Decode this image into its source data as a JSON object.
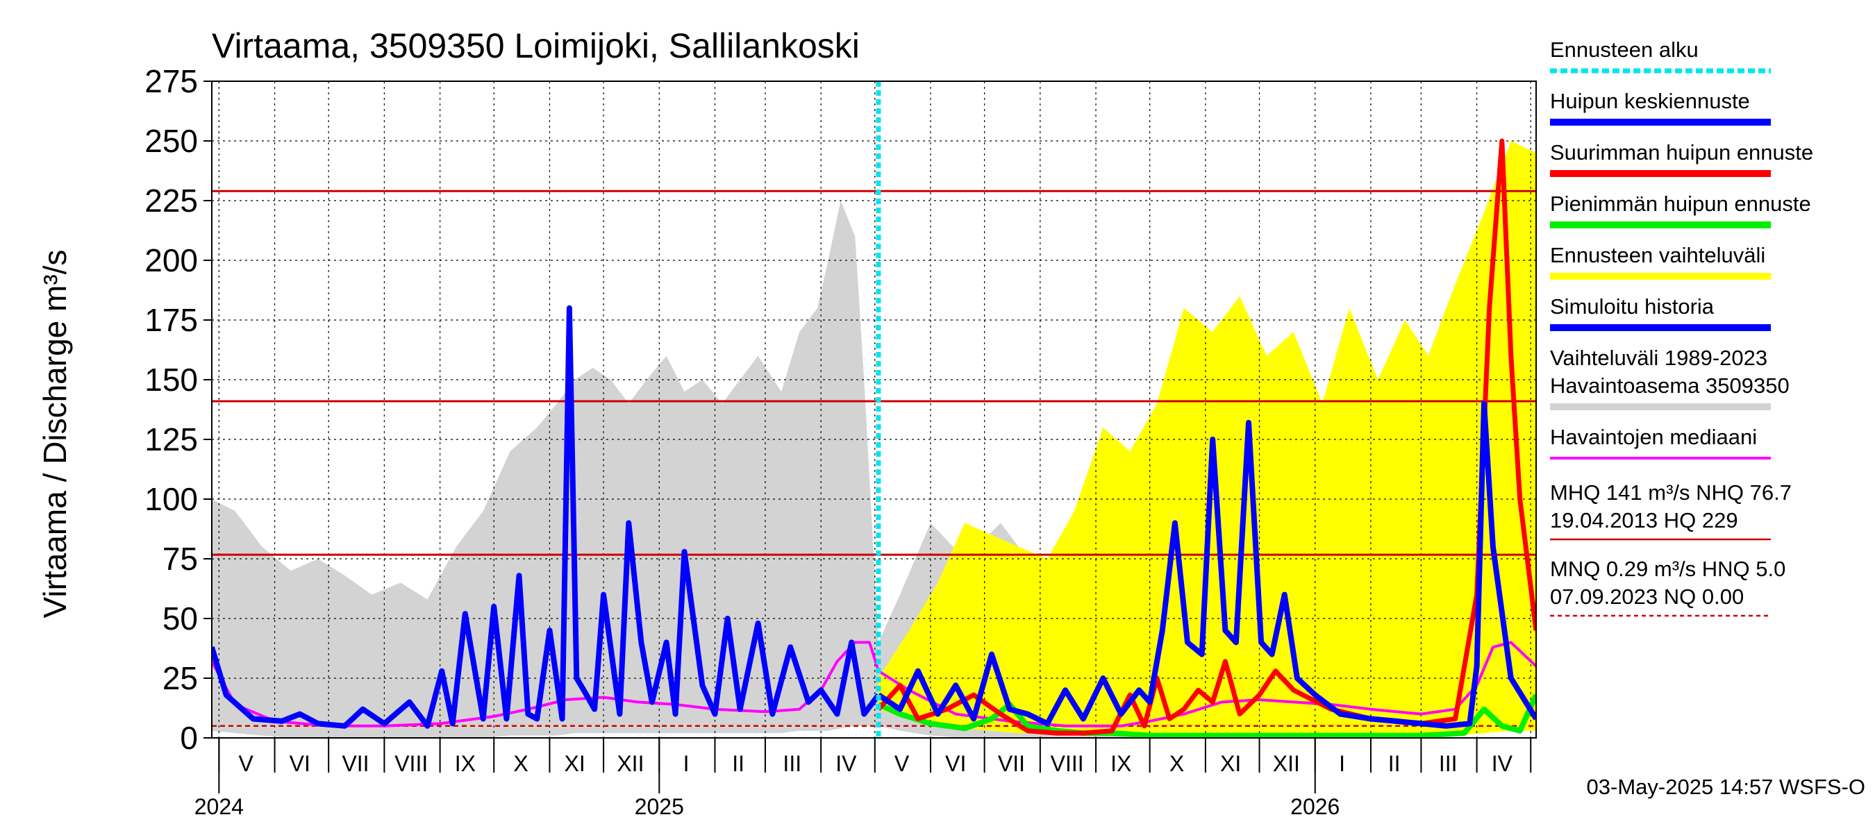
{
  "chart_data": {
    "type": "area",
    "title": "Virtaama, 3509350 Loimijoki, Sallilankoski",
    "ylabel": "Virtaama / Discharge    m³/s",
    "ylim": [
      0,
      275
    ],
    "xlim": [
      "2024-04-27",
      "2026-05-04"
    ],
    "grid": true,
    "legend_placement": "right",
    "yticks": [
      "0",
      "25",
      "50",
      "75",
      "100",
      "125",
      "150",
      "175",
      "200",
      "225",
      "250",
      "275"
    ],
    "month_labels": [
      {
        "label": "V",
        "date": "2024-05-16"
      },
      {
        "label": "VI",
        "date": "2024-06-15"
      },
      {
        "label": "VII",
        "date": "2024-07-16"
      },
      {
        "label": "VIII",
        "date": "2024-08-16"
      },
      {
        "label": "IX",
        "date": "2024-09-15"
      },
      {
        "label": "X",
        "date": "2024-10-16"
      },
      {
        "label": "XI",
        "date": "2024-11-15"
      },
      {
        "label": "XII",
        "date": "2024-12-16"
      },
      {
        "label": "I",
        "date": "2025-01-16"
      },
      {
        "label": "II",
        "date": "2025-02-14"
      },
      {
        "label": "III",
        "date": "2025-03-16"
      },
      {
        "label": "IV",
        "date": "2025-04-15"
      },
      {
        "label": "V",
        "date": "2025-05-16"
      },
      {
        "label": "VI",
        "date": "2025-06-15"
      },
      {
        "label": "VII",
        "date": "2025-07-16"
      },
      {
        "label": "VIII",
        "date": "2025-08-16"
      },
      {
        "label": "IX",
        "date": "2025-09-15"
      },
      {
        "label": "X",
        "date": "2025-10-16"
      },
      {
        "label": "XI",
        "date": "2025-11-15"
      },
      {
        "label": "XII",
        "date": "2025-12-16"
      },
      {
        "label": "I",
        "date": "2026-01-16"
      },
      {
        "label": "II",
        "date": "2026-02-14"
      },
      {
        "label": "III",
        "date": "2026-03-16"
      },
      {
        "label": "IV",
        "date": "2026-04-15"
      }
    ],
    "month_boundaries": [
      "2024-05-01",
      "2024-06-01",
      "2024-07-01",
      "2024-08-01",
      "2024-09-01",
      "2024-10-01",
      "2024-11-01",
      "2024-12-01",
      "2025-01-01",
      "2025-02-01",
      "2025-03-01",
      "2025-04-01",
      "2025-05-01",
      "2025-06-01",
      "2025-07-01",
      "2025-08-01",
      "2025-09-01",
      "2025-10-01",
      "2025-11-01",
      "2025-12-01",
      "2026-01-01",
      "2026-02-01",
      "2026-03-01",
      "2026-04-01",
      "2026-05-01"
    ],
    "year_labels": [
      {
        "label": "2024",
        "date": "2024-05-01"
      },
      {
        "label": "2025",
        "date": "2025-01-01"
      },
      {
        "label": "2026",
        "date": "2026-01-01"
      }
    ],
    "forecast_start": "2025-05-03",
    "reference_lines": [
      {
        "value": 229,
        "style": "solid"
      },
      {
        "value": 141,
        "style": "solid"
      },
      {
        "value": 76.7,
        "style": "solid"
      },
      {
        "value": 5.0,
        "style": "dashed"
      }
    ],
    "colors": {
      "forecast_start": "#00e5ee",
      "mean_forecast": "#0000ff",
      "max_forecast": "#ff0000",
      "min_forecast": "#00ee00",
      "forecast_range": "#ffff00",
      "simulated_history": "#0000ff",
      "historical_range": "#d3d3d3",
      "observed_median": "#ff00ff",
      "reference": "#cc0000"
    },
    "series": [
      {
        "name": "Vaihteluväli 1989-2023 Havaintoasema 3509350",
        "kind": "band",
        "x": [
          "2024-04-27",
          "2024-05-10",
          "2024-05-25",
          "2024-06-10",
          "2024-06-25",
          "2024-07-10",
          "2024-07-25",
          "2024-08-10",
          "2024-08-25",
          "2024-09-10",
          "2024-09-25",
          "2024-10-10",
          "2024-10-25",
          "2024-11-05",
          "2024-11-15",
          "2024-11-25",
          "2024-12-05",
          "2024-12-15",
          "2024-12-25",
          "2025-01-05",
          "2025-01-15",
          "2025-01-25",
          "2025-02-05",
          "2025-02-15",
          "2025-02-25",
          "2025-03-10",
          "2025-03-20",
          "2025-03-30",
          "2025-04-05",
          "2025-04-12",
          "2025-04-20",
          "2025-04-25",
          "2025-05-03",
          "2025-05-15",
          "2025-06-01",
          "2025-06-20",
          "2025-07-10",
          "2025-07-30",
          "2025-08-20",
          "2025-09-10",
          "2025-09-30",
          "2025-10-15",
          "2025-10-30",
          "2025-11-10",
          "2025-11-25",
          "2025-12-10",
          "2025-12-25",
          "2026-01-10",
          "2026-01-25",
          "2026-02-10",
          "2026-02-25",
          "2026-03-10",
          "2026-03-25",
          "2026-04-05",
          "2026-04-15",
          "2026-04-25",
          "2026-05-04"
        ],
        "low": [
          3,
          2,
          1,
          0,
          0,
          0,
          0,
          0,
          0,
          0,
          0,
          1,
          1,
          1,
          2,
          2,
          2,
          2,
          2,
          2,
          2,
          2,
          2,
          2,
          2,
          2,
          3,
          3,
          3,
          4,
          5,
          5,
          5,
          3,
          1,
          0,
          0,
          0,
          0,
          0,
          1,
          1,
          2,
          2,
          2,
          2,
          2,
          2,
          2,
          2,
          2,
          2,
          3,
          4,
          6,
          5,
          5
        ],
        "high": [
          100,
          95,
          80,
          70,
          75,
          68,
          60,
          65,
          58,
          80,
          95,
          120,
          130,
          140,
          150,
          155,
          150,
          140,
          150,
          160,
          145,
          150,
          140,
          150,
          160,
          145,
          170,
          180,
          200,
          225,
          210,
          150,
          40,
          60,
          90,
          75,
          90,
          70,
          75,
          80,
          90,
          100,
          110,
          110,
          120,
          125,
          120,
          150,
          140,
          130,
          150,
          160,
          175,
          180,
          175,
          180,
          110
        ]
      },
      {
        "name": "Ennusteen vaihteluväli",
        "kind": "band",
        "x": [
          "2025-05-03",
          "2025-05-20",
          "2025-06-05",
          "2025-06-20",
          "2025-07-05",
          "2025-07-20",
          "2025-08-05",
          "2025-08-20",
          "2025-09-05",
          "2025-09-20",
          "2025-10-05",
          "2025-10-20",
          "2025-11-05",
          "2025-11-20",
          "2025-12-05",
          "2025-12-20",
          "2026-01-05",
          "2026-01-20",
          "2026-02-05",
          "2026-02-20",
          "2026-03-05",
          "2026-03-20",
          "2026-04-05",
          "2026-04-20",
          "2026-05-04"
        ],
        "low": [
          12,
          8,
          6,
          4,
          3,
          2,
          2,
          1,
          1,
          1,
          1,
          1,
          1,
          1,
          1,
          1,
          1,
          1,
          1,
          1,
          1,
          1,
          2,
          3,
          3
        ],
        "high": [
          25,
          45,
          65,
          90,
          85,
          80,
          75,
          95,
          130,
          120,
          140,
          180,
          170,
          185,
          160,
          170,
          140,
          180,
          150,
          175,
          160,
          190,
          220,
          250,
          245
        ]
      },
      {
        "name": "Havaintojen mediaani",
        "x": [
          "2024-04-27",
          "2024-05-10",
          "2024-06-01",
          "2024-07-01",
          "2024-08-01",
          "2024-09-01",
          "2024-10-01",
          "2024-10-20",
          "2024-11-10",
          "2024-12-01",
          "2024-12-20",
          "2025-01-10",
          "2025-02-01",
          "2025-03-01",
          "2025-03-20",
          "2025-04-01",
          "2025-04-10",
          "2025-04-20",
          "2025-04-28",
          "2025-05-03",
          "2025-05-20",
          "2025-06-15",
          "2025-07-15",
          "2025-08-15",
          "2025-09-15",
          "2025-10-01",
          "2025-10-20",
          "2025-11-10",
          "2025-12-01",
          "2025-12-20",
          "2026-01-10",
          "2026-02-01",
          "2026-03-01",
          "2026-03-20",
          "2026-04-01",
          "2026-04-10",
          "2026-04-20",
          "2026-05-04"
        ],
        "y": [
          32,
          14,
          7,
          5,
          5,
          6,
          9,
          12,
          16,
          17,
          15,
          14,
          12,
          11,
          12,
          20,
          32,
          40,
          40,
          28,
          20,
          10,
          7,
          5,
          5,
          7,
          10,
          15,
          16,
          15,
          14,
          12,
          10,
          12,
          22,
          38,
          40,
          30
        ]
      },
      {
        "name": "Simuloitu historia",
        "x": [
          "2024-04-27",
          "2024-05-05",
          "2024-05-20",
          "2024-06-05",
          "2024-06-15",
          "2024-06-25",
          "2024-07-10",
          "2024-07-20",
          "2024-08-01",
          "2024-08-15",
          "2024-08-25",
          "2024-09-02",
          "2024-09-08",
          "2024-09-15",
          "2024-09-25",
          "2024-10-01",
          "2024-10-08",
          "2024-10-15",
          "2024-10-20",
          "2024-10-25",
          "2024-11-01",
          "2024-11-08",
          "2024-11-12",
          "2024-11-16",
          "2024-11-20",
          "2024-11-26",
          "2024-12-01",
          "2024-12-10",
          "2024-12-15",
          "2024-12-22",
          "2024-12-28",
          "2025-01-05",
          "2025-01-10",
          "2025-01-15",
          "2025-01-25",
          "2025-02-01",
          "2025-02-08",
          "2025-02-15",
          "2025-02-25",
          "2025-03-05",
          "2025-03-15",
          "2025-03-25",
          "2025-04-01",
          "2025-04-10",
          "2025-04-18",
          "2025-04-25",
          "2025-05-03"
        ],
        "y": [
          38,
          18,
          8,
          7,
          10,
          6,
          5,
          12,
          6,
          15,
          5,
          28,
          6,
          52,
          8,
          55,
          8,
          68,
          10,
          8,
          45,
          8,
          180,
          25,
          20,
          12,
          60,
          10,
          90,
          40,
          15,
          40,
          10,
          78,
          22,
          10,
          50,
          12,
          48,
          10,
          38,
          15,
          20,
          10,
          40,
          10,
          18
        ]
      },
      {
        "name": "Huipun keskiennuste",
        "x": [
          "2025-05-03",
          "2025-05-15",
          "2025-05-25",
          "2025-06-05",
          "2025-06-15",
          "2025-06-25",
          "2025-07-05",
          "2025-07-15",
          "2025-07-25",
          "2025-08-05",
          "2025-08-15",
          "2025-08-25",
          "2025-09-05",
          "2025-09-15",
          "2025-09-25",
          "2025-10-01",
          "2025-10-08",
          "2025-10-15",
          "2025-10-22",
          "2025-10-30",
          "2025-11-05",
          "2025-11-12",
          "2025-11-18",
          "2025-11-25",
          "2025-12-02",
          "2025-12-08",
          "2025-12-15",
          "2025-12-22",
          "2026-01-01",
          "2026-01-15",
          "2026-02-01",
          "2026-02-15",
          "2026-03-01",
          "2026-03-15",
          "2026-03-28",
          "2026-04-01",
          "2026-04-05",
          "2026-04-10",
          "2026-04-20",
          "2026-05-04"
        ],
        "y": [
          18,
          12,
          28,
          10,
          22,
          8,
          35,
          12,
          10,
          6,
          20,
          8,
          25,
          10,
          20,
          15,
          45,
          90,
          40,
          35,
          125,
          45,
          40,
          132,
          40,
          35,
          60,
          25,
          18,
          10,
          8,
          7,
          6,
          5,
          6,
          30,
          140,
          80,
          25,
          8
        ]
      },
      {
        "name": "Suurimman huipun ennuste",
        "x": [
          "2025-05-03",
          "2025-05-15",
          "2025-05-25",
          "2025-06-10",
          "2025-06-25",
          "2025-07-10",
          "2025-07-25",
          "2025-08-10",
          "2025-08-25",
          "2025-09-10",
          "2025-09-20",
          "2025-09-28",
          "2025-10-05",
          "2025-10-12",
          "2025-10-20",
          "2025-10-28",
          "2025-11-05",
          "2025-11-12",
          "2025-11-20",
          "2025-12-01",
          "2025-12-10",
          "2025-12-20",
          "2026-01-10",
          "2026-02-01",
          "2026-03-01",
          "2026-03-20",
          "2026-04-01",
          "2026-04-08",
          "2026-04-15",
          "2026-04-20",
          "2026-04-25",
          "2026-05-04"
        ],
        "y": [
          12,
          22,
          8,
          12,
          18,
          10,
          3,
          2,
          2,
          3,
          18,
          5,
          25,
          8,
          12,
          20,
          15,
          32,
          10,
          18,
          28,
          20,
          12,
          8,
          6,
          8,
          60,
          180,
          250,
          160,
          100,
          45
        ]
      },
      {
        "name": "Pienimmän huipun ennuste",
        "x": [
          "2025-05-03",
          "2025-05-15",
          "2025-06-01",
          "2025-06-20",
          "2025-07-05",
          "2025-07-15",
          "2025-07-25",
          "2025-08-10",
          "2025-08-25",
          "2025-09-10",
          "2025-10-01",
          "2025-11-01",
          "2025-12-01",
          "2026-01-01",
          "2026-02-01",
          "2026-03-01",
          "2026-03-25",
          "2026-04-05",
          "2026-04-15",
          "2026-04-25",
          "2026-05-04"
        ],
        "y": [
          14,
          10,
          6,
          4,
          8,
          14,
          5,
          3,
          2,
          2,
          1,
          1,
          1,
          1,
          1,
          1,
          2,
          12,
          5,
          3,
          18
        ]
      }
    ]
  },
  "legend": {
    "items": [
      {
        "label": "Ennusteen alku",
        "color": "#00e5ee",
        "style": "dotted"
      },
      {
        "label": "Huipun keskiennuste",
        "color": "#0000ff",
        "style": "solid"
      },
      {
        "label": "Suurimman huipun ennuste",
        "color": "#ff0000",
        "style": "solid"
      },
      {
        "label": "Pienimmän huipun ennuste",
        "color": "#00ee00",
        "style": "solid"
      },
      {
        "label": "Ennusteen vaihteluväli",
        "color": "#ffff00",
        "style": "solid"
      },
      {
        "label": "Simuloitu historia",
        "color": "#0000ff",
        "style": "solid"
      },
      {
        "label": "Vaihteluväli 1989-2023",
        "label2": " Havaintoasema 3509350",
        "color": "#d3d3d3",
        "style": "solid"
      },
      {
        "label": "Havaintojen mediaani",
        "color": "#ff00ff",
        "style": "thin"
      }
    ],
    "stats": [
      {
        "line1": "MHQ  141 m³/s NHQ 76.7",
        "line2": "19.04.2013 HQ  229",
        "color": "#cc0000",
        "style": "solid"
      },
      {
        "line1": "MNQ 0.29 m³/s HNQ  5.0",
        "line2": "07.09.2023 NQ 0.00",
        "color": "#cc0000",
        "style": "dashed"
      }
    ]
  },
  "footer": {
    "timestamp": "03-May-2025 14:57 WSFS-O"
  }
}
